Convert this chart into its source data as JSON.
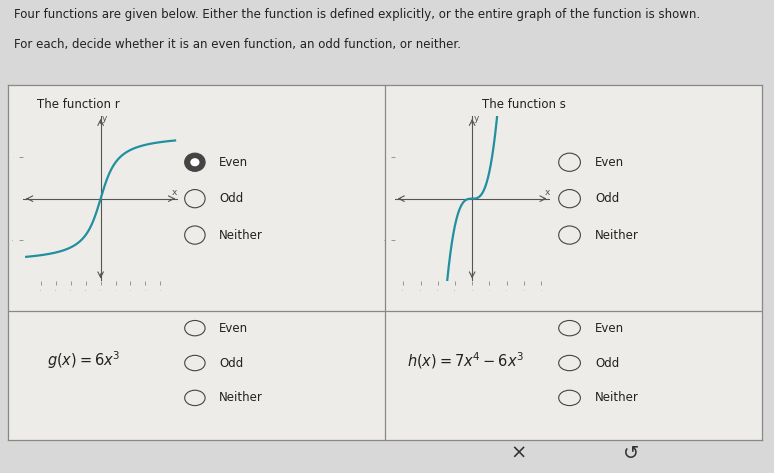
{
  "header_line1": "Four functions are given below. Either the function is defined explicitly, or the entire graph of the function is shown.",
  "header_line2": "For each, decide whether it is an even function, an odd function, or neither.",
  "cell_r_title": "The function r",
  "cell_s_title": "The function s",
  "cell_g_formula": "$g\\left(x\\right) = 6x^3$",
  "cell_h_formula": "$h\\left(x\\right) = 7x^4 - 6x^3$",
  "radio_options": [
    "Even",
    "Odd",
    "Neither"
  ],
  "selected_r": "Even",
  "selected_s": null,
  "selected_g": null,
  "selected_h": null,
  "bg_color": "#d8d8d8",
  "table_bg": "#eeece8",
  "cell_bg": "#eeece8",
  "curve_color": "#2090a0",
  "axis_color": "#555555",
  "tick_color": "#888888",
  "text_color": "#222222",
  "grid_color": "#888888",
  "bottom_bar_color": "#c0c0c0",
  "header_bg": "#f0eeea"
}
